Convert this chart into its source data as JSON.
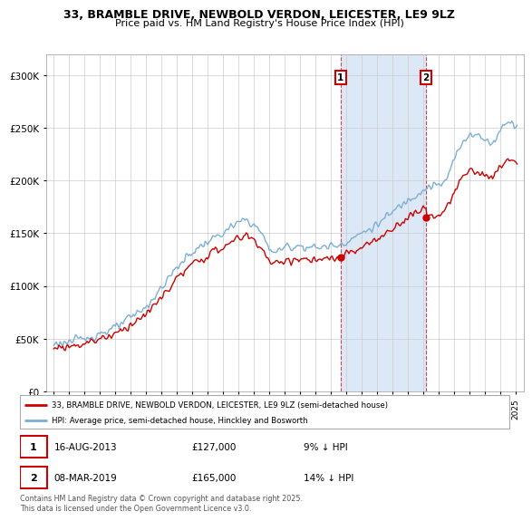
{
  "title": "33, BRAMBLE DRIVE, NEWBOLD VERDON, LEICESTER, LE9 9LZ",
  "subtitle": "Price paid vs. HM Land Registry's House Price Index (HPI)",
  "red_line_label": "33, BRAMBLE DRIVE, NEWBOLD VERDON, LEICESTER, LE9 9LZ (semi-detached house)",
  "blue_line_label": "HPI: Average price, semi-detached house, Hinckley and Bosworth",
  "annotation1_date": "16-AUG-2013",
  "annotation1_price": "£127,000",
  "annotation1_hpi": "9% ↓ HPI",
  "annotation2_date": "08-MAR-2019",
  "annotation2_price": "£165,000",
  "annotation2_hpi": "14% ↓ HPI",
  "footer": "Contains HM Land Registry data © Crown copyright and database right 2025.\nThis data is licensed under the Open Government Licence v3.0.",
  "purchase1_year": 2013.625,
  "purchase1_price": 127000,
  "purchase2_year": 2019.18,
  "purchase2_price": 165000,
  "red_color": "#cc0000",
  "blue_color": "#7bafd4",
  "shaded_color": "#dce8f5",
  "ylim": [
    0,
    320000
  ],
  "xlim_start": 1994.5,
  "xlim_end": 2025.5,
  "yticks": [
    0,
    50000,
    100000,
    150000,
    200000,
    250000,
    300000
  ],
  "ylabels": [
    "£0",
    "£50K",
    "£100K",
    "£150K",
    "£200K",
    "£250K",
    "£300K"
  ]
}
